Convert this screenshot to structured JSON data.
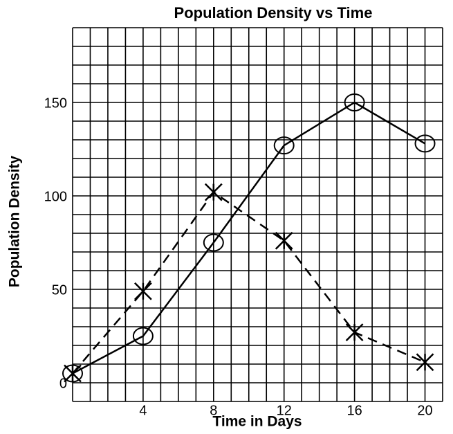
{
  "chart_data": {
    "type": "line",
    "title": "Population Density vs Time",
    "xlabel": "Time in Days",
    "ylabel": "Population Density",
    "x": [
      0,
      4,
      8,
      12,
      16,
      20
    ],
    "series": [
      {
        "color": "#000000",
        "dash": false,
        "marker": "circle",
        "values": [
          5,
          25,
          75,
          127,
          150,
          128
        ]
      },
      {
        "color": "#000000",
        "dash": true,
        "marker": "x",
        "values": [
          5,
          49,
          102,
          76,
          27,
          11
        ]
      }
    ],
    "xlim": [
      0,
      21
    ],
    "ylim": [
      -10,
      190
    ],
    "xticks": [
      4,
      8,
      12,
      16,
      20
    ],
    "yticks": [
      0,
      50,
      100,
      150
    ],
    "grid": true,
    "xgrid": [
      0,
      1,
      2,
      3,
      4,
      5,
      6,
      7,
      8,
      9,
      10,
      11,
      12,
      13,
      14,
      15,
      16,
      17,
      18,
      19,
      20,
      21
    ],
    "ygrid": [
      -10,
      0,
      10,
      20,
      30,
      40,
      50,
      60,
      70,
      80,
      90,
      100,
      110,
      120,
      130,
      140,
      150,
      160,
      170,
      180,
      190
    ]
  }
}
